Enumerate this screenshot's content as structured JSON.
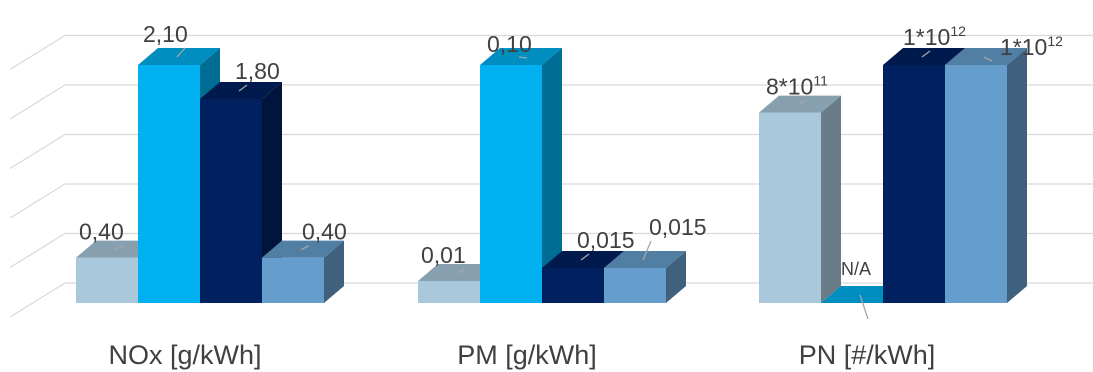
{
  "chart_data": {
    "type": "bar",
    "title": "",
    "xlabel": "",
    "ylabel": "",
    "categories": [
      "NOx [g/kWh]",
      "PM [g/kWh]",
      "PN [#/kWh]"
    ],
    "series": [
      {
        "color": "#a9c8dc",
        "values": [
          0.4,
          0.01,
          800000000000.0
        ],
        "labels": [
          {
            "t": "0,40"
          },
          {
            "t": "0,01"
          },
          {
            "t": "8*10",
            "sup": "11"
          }
        ]
      },
      {
        "color": "#00b0f0",
        "values": [
          2.1,
          0.1,
          null
        ],
        "labels": [
          {
            "t": "2,10"
          },
          {
            "t": "0,10"
          },
          {
            "t": "N/A"
          }
        ]
      },
      {
        "color": "#002060",
        "values": [
          1.8,
          0.015,
          1000000000000.0
        ],
        "labels": [
          {
            "t": "1,80"
          },
          {
            "t": "0,015"
          },
          {
            "t": "1*10",
            "sup": "12"
          }
        ]
      },
      {
        "color": "#659dcc",
        "values": [
          0.4,
          0.015,
          1000000000000.0
        ],
        "labels": [
          {
            "t": "0,40"
          },
          {
            "t": "0,015"
          },
          {
            "t": "1*10",
            "sup": "12"
          }
        ]
      }
    ],
    "note": "Each category group is drawn on its own scale; PM bars for 0,015 are drawn at the same height as the 0,01 value region (non-linear, as in original)",
    "grid": true,
    "legend": "none",
    "style": "3d-column"
  }
}
